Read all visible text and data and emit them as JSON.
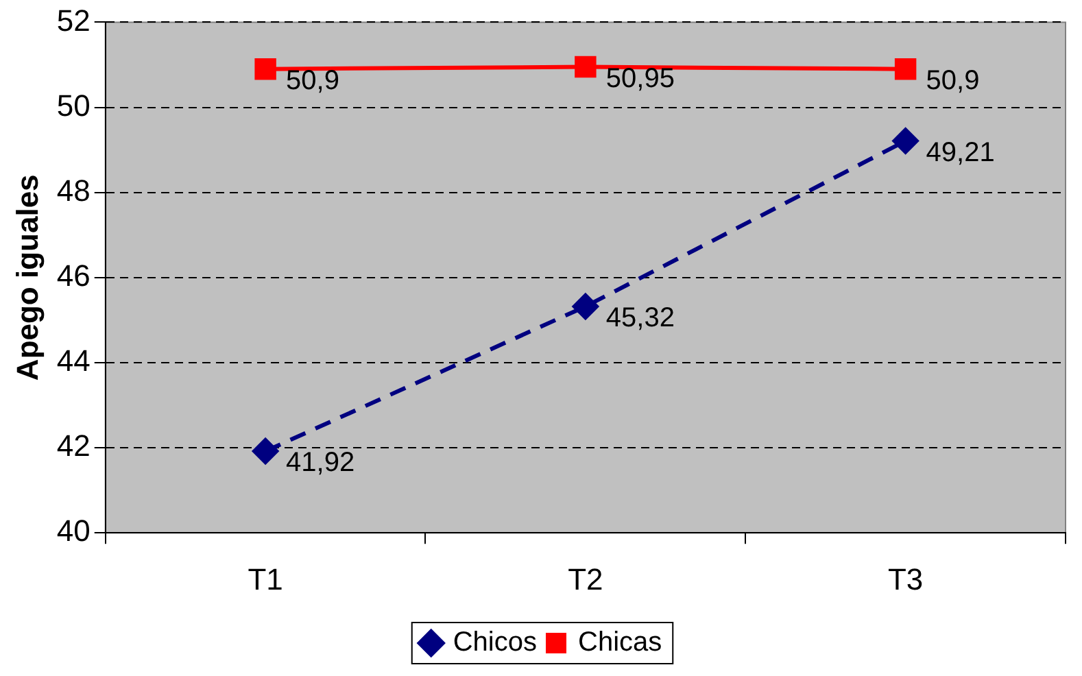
{
  "chart_data": {
    "type": "line",
    "ylabel": "Apego iguales",
    "categories": [
      "T1",
      "T2",
      "T3"
    ],
    "series": [
      {
        "name": "Chicos",
        "color": "#000080",
        "values": [
          41.92,
          45.32,
          49.21
        ],
        "value_labels": [
          "41,92",
          "45,32",
          "49,21"
        ],
        "marker": "diamond",
        "line_style": "dashed"
      },
      {
        "name": "Chicas",
        "color": "#ff0000",
        "values": [
          50.9,
          50.95,
          50.9
        ],
        "value_labels": [
          "50,9",
          "50,95",
          "50,9"
        ],
        "marker": "square",
        "line_style": "solid"
      }
    ],
    "ylim": [
      40,
      52
    ],
    "yticks": [
      40,
      42,
      44,
      46,
      48,
      50,
      52
    ],
    "grid": "y",
    "legend": "bottom"
  }
}
